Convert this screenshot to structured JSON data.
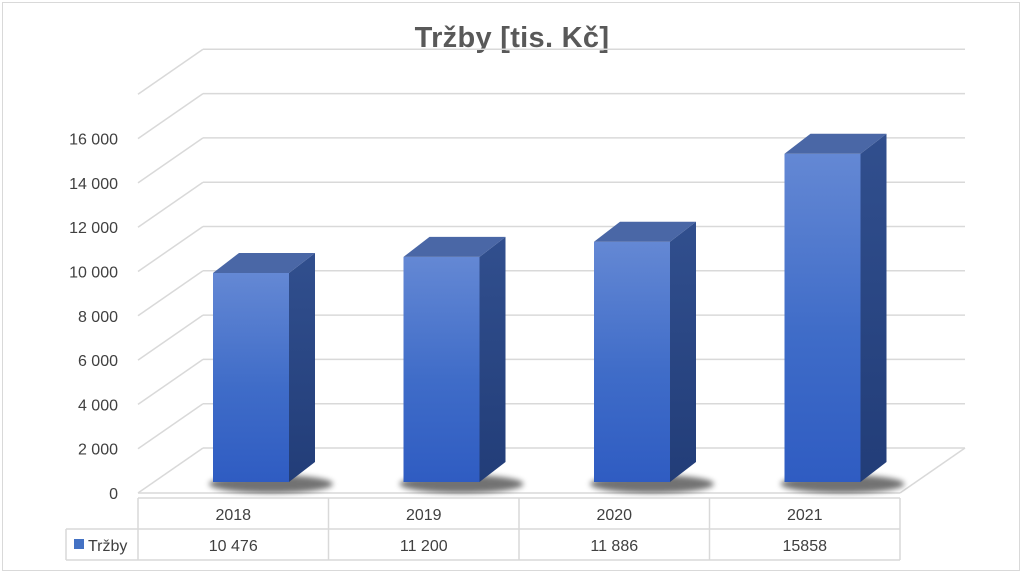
{
  "chart_data": {
    "type": "bar",
    "title": "Tržby [tis. Kč]",
    "categories": [
      "2018",
      "2019",
      "2020",
      "2021"
    ],
    "series": [
      {
        "name": "Tržby",
        "values": [
          10476,
          11200,
          11886,
          15858
        ],
        "color": "#4472c4"
      }
    ],
    "data_table_values": [
      "10 476",
      "11 200",
      "11 886",
      "15858"
    ],
    "y_ticks": [
      "0",
      "2 000",
      "4 000",
      "6 000",
      "8 000",
      "10 000",
      "12 000",
      "14 000",
      "16 000"
    ],
    "ylim": [
      0,
      16000
    ],
    "grid": true,
    "style": "3d-column",
    "legend": "data-table"
  }
}
